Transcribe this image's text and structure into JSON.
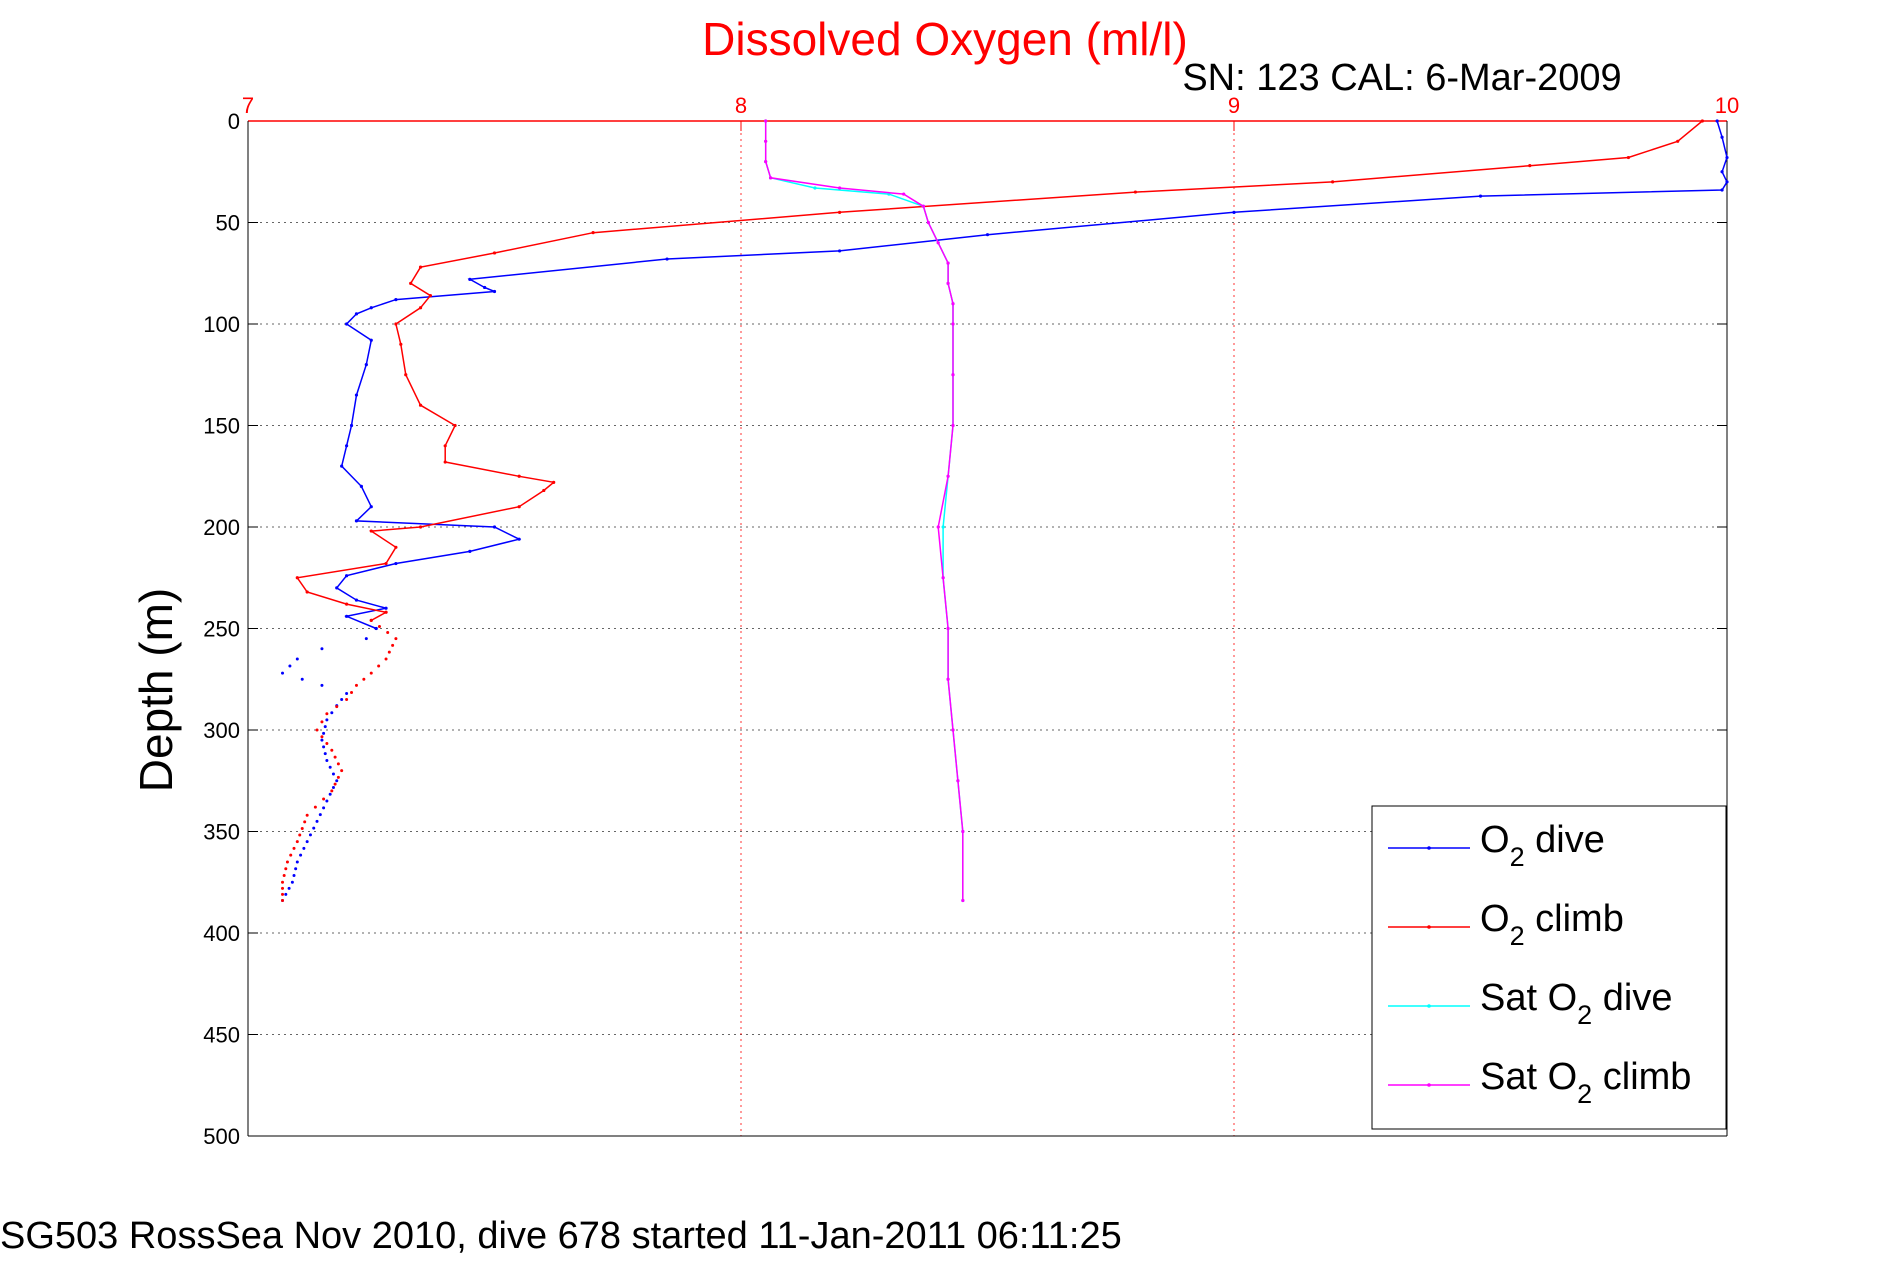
{
  "chart_data": {
    "type": "line",
    "title": "Dissolved Oxygen (ml/l)",
    "subtitle": "SN: 123  CAL: 6-Mar-2009",
    "ylabel": "Depth (m)",
    "footer": "SG503 RossSea Nov 2010, dive 678 started 11-Jan-2011 06:11:25",
    "xlim": [
      7,
      10
    ],
    "ylim": [
      0,
      500
    ],
    "y_reversed": true,
    "x_axis_position": "top",
    "xticks": [
      "7",
      "8",
      "9",
      "10"
    ],
    "yticks": [
      "0",
      "50",
      "100",
      "150",
      "200",
      "250",
      "300",
      "350",
      "400",
      "450",
      "500"
    ],
    "grid": true,
    "legend_position": "bottom-right",
    "axis_color": "#ff0000",
    "series": [
      {
        "name": "O2 dive",
        "legend": {
          "pre": "O",
          "sub": "2",
          "post": " dive"
        },
        "color": "#0000ff",
        "points": [
          [
            9.98,
            0
          ],
          [
            9.99,
            8
          ],
          [
            10.0,
            18
          ],
          [
            9.99,
            25
          ],
          [
            10.0,
            30
          ],
          [
            9.99,
            34
          ],
          [
            9.5,
            37
          ],
          [
            9.0,
            45
          ],
          [
            8.5,
            56
          ],
          [
            8.2,
            64
          ],
          [
            7.85,
            68
          ],
          [
            7.45,
            78
          ],
          [
            7.48,
            82
          ],
          [
            7.5,
            84
          ],
          [
            7.3,
            88
          ],
          [
            7.25,
            92
          ],
          [
            7.22,
            95
          ],
          [
            7.2,
            100
          ],
          [
            7.25,
            108
          ],
          [
            7.24,
            120
          ],
          [
            7.22,
            135
          ],
          [
            7.21,
            150
          ],
          [
            7.2,
            160
          ],
          [
            7.19,
            170
          ],
          [
            7.23,
            180
          ],
          [
            7.25,
            190
          ],
          [
            7.22,
            197
          ],
          [
            7.5,
            200
          ],
          [
            7.55,
            206
          ],
          [
            7.45,
            212
          ],
          [
            7.3,
            218
          ],
          [
            7.2,
            224
          ],
          [
            7.18,
            230
          ],
          [
            7.22,
            236
          ],
          [
            7.28,
            240
          ],
          [
            7.2,
            244
          ],
          [
            7.26,
            250
          ]
        ],
        "tail": [
          [
            7.24,
            255
          ],
          [
            7.15,
            260
          ],
          [
            7.1,
            265
          ],
          [
            7.07,
            272
          ],
          [
            7.15,
            278
          ],
          [
            7.2,
            282
          ],
          [
            7.18,
            288
          ],
          [
            7.16,
            295
          ],
          [
            7.15,
            305
          ],
          [
            7.16,
            315
          ],
          [
            7.18,
            325
          ],
          [
            7.16,
            335
          ],
          [
            7.14,
            345
          ],
          [
            7.12,
            355
          ],
          [
            7.1,
            365
          ],
          [
            7.09,
            375
          ],
          [
            7.07,
            384
          ]
        ]
      },
      {
        "name": "O2 climb",
        "legend": {
          "pre": "O",
          "sub": "2",
          "post": " climb"
        },
        "color": "#ff0000",
        "points": [
          [
            9.95,
            0
          ],
          [
            9.9,
            10
          ],
          [
            9.8,
            18
          ],
          [
            9.6,
            22
          ],
          [
            9.2,
            30
          ],
          [
            8.8,
            35
          ],
          [
            8.2,
            45
          ],
          [
            7.7,
            55
          ],
          [
            7.5,
            65
          ],
          [
            7.35,
            72
          ],
          [
            7.33,
            80
          ],
          [
            7.37,
            86
          ],
          [
            7.35,
            92
          ],
          [
            7.3,
            100
          ],
          [
            7.31,
            110
          ],
          [
            7.32,
            125
          ],
          [
            7.35,
            140
          ],
          [
            7.42,
            150
          ],
          [
            7.4,
            160
          ],
          [
            7.4,
            168
          ],
          [
            7.55,
            175
          ],
          [
            7.62,
            178
          ],
          [
            7.6,
            182
          ],
          [
            7.55,
            190
          ],
          [
            7.35,
            200
          ],
          [
            7.25,
            202
          ],
          [
            7.3,
            210
          ],
          [
            7.28,
            218
          ],
          [
            7.1,
            225
          ],
          [
            7.12,
            232
          ],
          [
            7.2,
            238
          ],
          [
            7.28,
            242
          ],
          [
            7.25,
            246
          ]
        ],
        "tail": [
          [
            7.3,
            255
          ],
          [
            7.28,
            265
          ],
          [
            7.25,
            272
          ],
          [
            7.22,
            278
          ],
          [
            7.2,
            285
          ],
          [
            7.16,
            292
          ],
          [
            7.14,
            300
          ],
          [
            7.17,
            310
          ],
          [
            7.19,
            320
          ],
          [
            7.17,
            330
          ],
          [
            7.12,
            342
          ],
          [
            7.1,
            355
          ],
          [
            7.08,
            365
          ],
          [
            7.07,
            375
          ],
          [
            7.07,
            384
          ]
        ]
      },
      {
        "name": "Sat O2 dive",
        "legend": {
          "pre": "Sat O",
          "sub": "2",
          "post": " dive"
        },
        "color": "#00ffff",
        "points": [
          [
            8.05,
            0
          ],
          [
            8.05,
            10
          ],
          [
            8.05,
            20
          ],
          [
            8.06,
            28
          ],
          [
            8.15,
            33
          ],
          [
            8.3,
            36
          ],
          [
            8.37,
            42
          ],
          [
            8.38,
            50
          ],
          [
            8.4,
            60
          ],
          [
            8.42,
            70
          ],
          [
            8.42,
            80
          ],
          [
            8.43,
            90
          ],
          [
            8.43,
            100
          ],
          [
            8.43,
            125
          ],
          [
            8.43,
            150
          ],
          [
            8.42,
            175
          ],
          [
            8.41,
            200
          ],
          [
            8.41,
            225
          ],
          [
            8.42,
            250
          ],
          [
            8.42,
            275
          ],
          [
            8.43,
            300
          ],
          [
            8.44,
            325
          ],
          [
            8.45,
            350
          ],
          [
            8.45,
            384
          ]
        ]
      },
      {
        "name": "Sat O2 climb",
        "legend": {
          "pre": "Sat O",
          "sub": "2",
          "post": " climb"
        },
        "color": "#ff00ff",
        "points": [
          [
            8.05,
            0
          ],
          [
            8.05,
            10
          ],
          [
            8.05,
            20
          ],
          [
            8.06,
            28
          ],
          [
            8.2,
            33
          ],
          [
            8.33,
            36
          ],
          [
            8.37,
            42
          ],
          [
            8.38,
            50
          ],
          [
            8.4,
            60
          ],
          [
            8.42,
            70
          ],
          [
            8.42,
            80
          ],
          [
            8.43,
            90
          ],
          [
            8.43,
            100
          ],
          [
            8.43,
            125
          ],
          [
            8.43,
            150
          ],
          [
            8.42,
            175
          ],
          [
            8.4,
            200
          ],
          [
            8.41,
            225
          ],
          [
            8.42,
            250
          ],
          [
            8.42,
            275
          ],
          [
            8.43,
            300
          ],
          [
            8.44,
            325
          ],
          [
            8.45,
            350
          ],
          [
            8.45,
            384
          ]
        ]
      }
    ]
  }
}
